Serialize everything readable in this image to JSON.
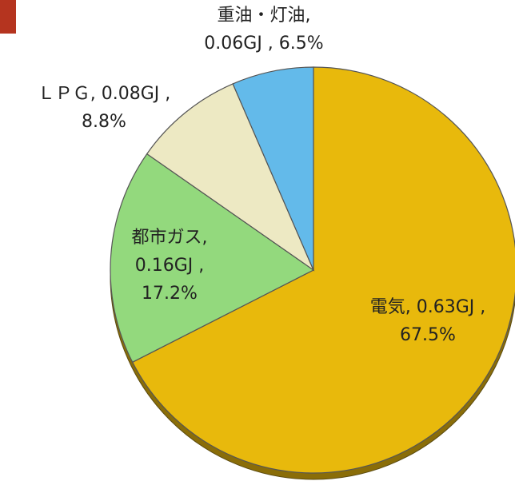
{
  "chart_data": {
    "type": "pie",
    "categories": [
      "電気",
      "都市ガス",
      "ＬＰＧ",
      "重油・灯油"
    ],
    "values": [
      67.5,
      17.2,
      8.8,
      6.5
    ],
    "colors": [
      "#e8b90c",
      "#93d97d",
      "#ede9c3",
      "#63baea"
    ],
    "label_lines": [
      [
        "電気, 0.63GJ ,",
        "67.5%"
      ],
      [
        "都市ガス,",
        "0.16GJ ,",
        "17.2%"
      ],
      [
        "ＬＰＧ, 0.08GJ ,",
        "8.8%"
      ],
      [
        "重油・灯油,",
        "0.06GJ , 6.5%"
      ]
    ]
  }
}
